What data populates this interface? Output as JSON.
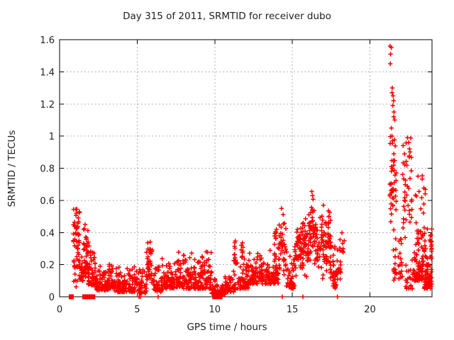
{
  "title": "Day 315 of 2011, SRMTID for receiver dubo",
  "chart_data": {
    "type": "scatter",
    "title": "Day 315 of 2011, SRMTID for receiver dubo",
    "xlabel": "GPS time / hours",
    "ylabel": "SRMTID / TECUs",
    "xlim": [
      0,
      24
    ],
    "ylim": [
      0,
      1.6
    ],
    "x_ticks": [
      0,
      5,
      10,
      15,
      20
    ],
    "x_tick_labels": [
      "0",
      "5",
      "10",
      "15",
      "20"
    ],
    "y_ticks": [
      0,
      0.2,
      0.4,
      0.6,
      0.8,
      1,
      1.2,
      1.4,
      1.6
    ],
    "y_tick_labels": [
      "0",
      "0.2",
      "0.4",
      "0.6",
      "0.8",
      "1",
      "1.2",
      "1.4",
      "1.6"
    ],
    "grid": true,
    "grid_style": "dotted",
    "grid_color": "#b0b0b0",
    "frame_color": "#000000",
    "marker": "plus",
    "marker_color": "#ff0000",
    "series_name": "SRMTID",
    "data_gap_hours": [
      18.35,
      21.25
    ],
    "notable_points": [
      [
        21.3,
        1.56
      ],
      [
        21.38,
        1.55
      ],
      [
        21.33,
        1.51
      ],
      [
        21.31,
        1.45
      ],
      [
        21.44,
        1.3
      ],
      [
        21.42,
        1.27
      ],
      [
        21.49,
        1.25
      ],
      [
        21.52,
        1.22
      ],
      [
        21.47,
        1.19
      ],
      [
        21.55,
        1.15
      ],
      [
        21.53,
        1.12
      ],
      [
        21.6,
        1.1
      ],
      [
        21.38,
        1.05
      ],
      [
        21.42,
        1.0
      ],
      [
        21.46,
        0.97
      ],
      [
        22.42,
        0.99
      ],
      [
        22.5,
        0.96
      ],
      [
        22.55,
        0.92
      ],
      [
        23.1,
        0.75
      ],
      [
        16.25,
        0.655
      ],
      [
        16.3,
        0.63
      ],
      [
        17.0,
        0.57
      ],
      [
        14.3,
        0.55
      ],
      [
        1.05,
        0.545
      ],
      [
        1.08,
        0.52
      ]
    ],
    "zero_square_x": [
      0.75,
      1.62,
      1.88,
      1.98,
      2.14,
      10.0,
      10.12,
      10.33
    ],
    "zero_plus_x": [
      5.12,
      5.2,
      6.35,
      14.35,
      15.68,
      17.9
    ],
    "density_bands": [
      [
        0.88,
        1.3,
        55,
        0.06,
        0.55,
        "u"
      ],
      [
        1.3,
        1.58,
        26,
        0.1,
        0.32,
        "l"
      ],
      [
        1.55,
        1.85,
        40,
        0.12,
        0.46,
        "u"
      ],
      [
        1.85,
        2.3,
        48,
        0.07,
        0.34,
        "l"
      ],
      [
        2.3,
        2.8,
        45,
        0.04,
        0.22,
        "l"
      ],
      [
        2.8,
        3.2,
        40,
        0.04,
        0.2,
        "l"
      ],
      [
        3.2,
        3.5,
        30,
        0.05,
        0.27,
        "l"
      ],
      [
        3.5,
        4.3,
        65,
        0.03,
        0.2,
        "l"
      ],
      [
        4.3,
        5.1,
        60,
        0.03,
        0.22,
        "l"
      ],
      [
        5.1,
        5.6,
        40,
        0.02,
        0.2,
        "l"
      ],
      [
        5.6,
        6.0,
        38,
        0.05,
        0.35,
        "m"
      ],
      [
        6.0,
        6.6,
        45,
        0.03,
        0.25,
        "l"
      ],
      [
        6.6,
        7.4,
        62,
        0.05,
        0.26,
        "l"
      ],
      [
        7.4,
        8.0,
        50,
        0.06,
        0.3,
        "l"
      ],
      [
        8.0,
        8.6,
        50,
        0.05,
        0.33,
        "l"
      ],
      [
        8.6,
        9.1,
        42,
        0.05,
        0.28,
        "l"
      ],
      [
        9.1,
        9.8,
        55,
        0.05,
        0.33,
        "l"
      ],
      [
        9.8,
        10.15,
        28,
        0.02,
        0.15,
        "l"
      ],
      [
        10.15,
        10.65,
        32,
        0.01,
        0.09,
        "l"
      ],
      [
        10.65,
        11.35,
        52,
        0.03,
        0.2,
        "l"
      ],
      [
        11.2,
        11.45,
        14,
        0.2,
        0.36,
        "u"
      ],
      [
        11.45,
        12.2,
        62,
        0.05,
        0.25,
        "l"
      ],
      [
        11.65,
        11.82,
        8,
        0.22,
        0.35,
        "u"
      ],
      [
        12.2,
        13.2,
        90,
        0.08,
        0.3,
        "l"
      ],
      [
        13.2,
        14.1,
        78,
        0.08,
        0.34,
        "l"
      ],
      [
        13.85,
        14.0,
        8,
        0.3,
        0.42,
        "u"
      ],
      [
        14.1,
        14.6,
        42,
        0.1,
        0.55,
        "m"
      ],
      [
        14.6,
        15.15,
        45,
        0.05,
        0.35,
        "l"
      ],
      [
        15.15,
        15.65,
        48,
        0.1,
        0.46,
        "m"
      ],
      [
        15.65,
        16.1,
        48,
        0.1,
        0.55,
        "m"
      ],
      [
        16.1,
        16.45,
        36,
        0.15,
        0.66,
        "m"
      ],
      [
        16.45,
        17.05,
        48,
        0.1,
        0.55,
        "m"
      ],
      [
        17.05,
        17.55,
        52,
        0.1,
        0.55,
        "m"
      ],
      [
        17.55,
        18.05,
        42,
        0.05,
        0.5,
        "l"
      ],
      [
        18.05,
        18.35,
        16,
        0.1,
        0.45,
        "m"
      ],
      [
        21.25,
        21.7,
        40,
        0.35,
        1.05,
        "m"
      ],
      [
        21.5,
        22.1,
        34,
        0.08,
        0.6,
        "l"
      ],
      [
        22.1,
        22.75,
        40,
        0.3,
        1.0,
        "m"
      ],
      [
        22.3,
        22.85,
        24,
        0.05,
        0.3,
        "l"
      ],
      [
        22.85,
        23.5,
        88,
        0.1,
        0.52,
        "l"
      ],
      [
        22.9,
        23.6,
        12,
        0.52,
        0.8,
        "u"
      ],
      [
        23.5,
        24.0,
        78,
        0.05,
        0.45,
        "l"
      ],
      [
        23.88,
        24.0,
        8,
        0.28,
        0.42,
        "u"
      ]
    ]
  }
}
